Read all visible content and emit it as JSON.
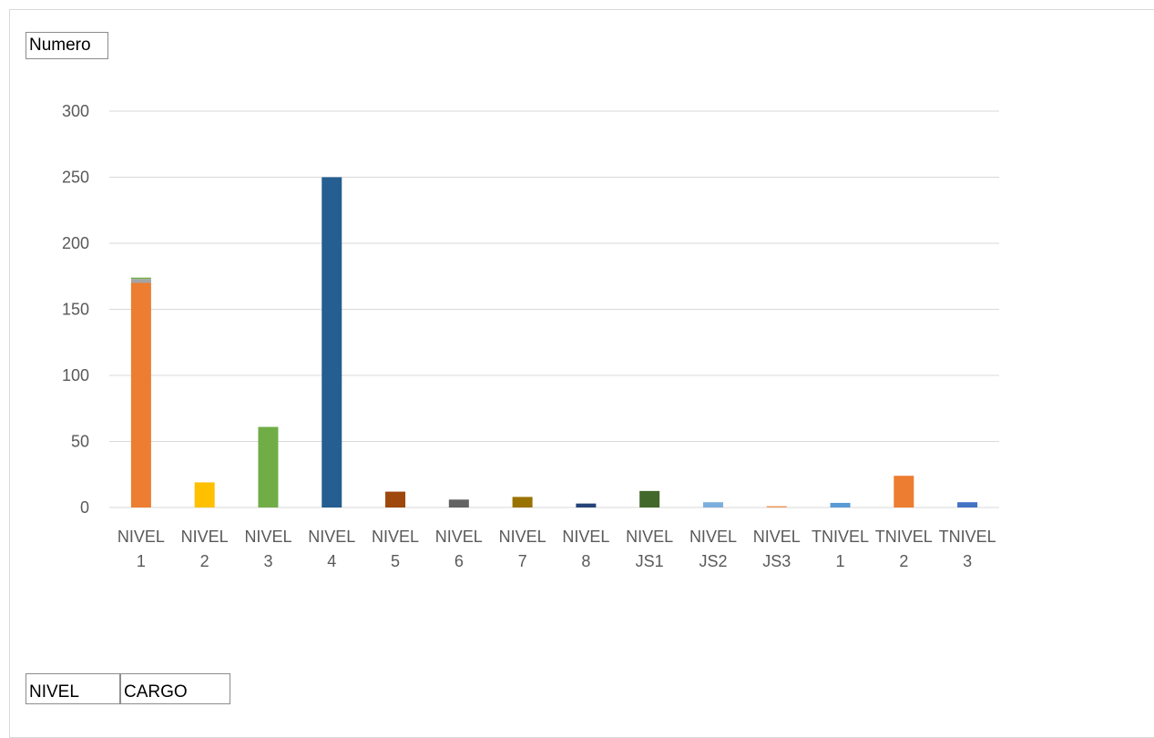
{
  "field_buttons": {
    "values": "Numero",
    "row_field": "NIVEL",
    "series_field": "CARGO"
  },
  "chart_data": {
    "type": "bar",
    "stacked": true,
    "categories": [
      [
        "NIVEL",
        "1"
      ],
      [
        "NIVEL",
        "2"
      ],
      [
        "NIVEL",
        "3"
      ],
      [
        "NIVEL",
        "4"
      ],
      [
        "NIVEL",
        "5"
      ],
      [
        "NIVEL",
        "6"
      ],
      [
        "NIVEL",
        "7"
      ],
      [
        "NIVEL",
        "8"
      ],
      [
        "NIVEL",
        "JS1"
      ],
      [
        "NIVEL",
        "JS2"
      ],
      [
        "NIVEL",
        "JS3"
      ],
      [
        "TNIVEL",
        "1"
      ],
      [
        "TNIVEL",
        "2"
      ],
      [
        "TNIVEL",
        "3"
      ]
    ],
    "segments": [
      {
        "category": 0,
        "value": 170,
        "color": "#ED7D31"
      },
      {
        "category": 0,
        "value": 3,
        "color": "#A5A5A5"
      },
      {
        "category": 0,
        "value": 1,
        "color": "#70AD47"
      },
      {
        "category": 1,
        "value": 19,
        "color": "#FFC000"
      },
      {
        "category": 2,
        "value": 61,
        "color": "#70AD47"
      },
      {
        "category": 3,
        "value": 250,
        "color": "#255E91"
      },
      {
        "category": 4,
        "value": 12,
        "color": "#9E480E"
      },
      {
        "category": 5,
        "value": 6,
        "color": "#636363"
      },
      {
        "category": 6,
        "value": 8,
        "color": "#997300"
      },
      {
        "category": 7,
        "value": 3,
        "color": "#264478"
      },
      {
        "category": 8,
        "value": 12.5,
        "color": "#43682B"
      },
      {
        "category": 9,
        "value": 4,
        "color": "#7CAFDD"
      },
      {
        "category": 10,
        "value": 1,
        "color": "#F1975A"
      },
      {
        "category": 11,
        "value": 3.5,
        "color": "#5B9BD5"
      },
      {
        "category": 12,
        "value": 24,
        "color": "#ED7D31"
      },
      {
        "category": 13,
        "value": 4,
        "color": "#4472C4"
      }
    ],
    "y_ticks": [
      0,
      50,
      100,
      150,
      200,
      250,
      300
    ],
    "ylim": [
      0,
      300
    ],
    "grid": true,
    "legend": "none"
  }
}
